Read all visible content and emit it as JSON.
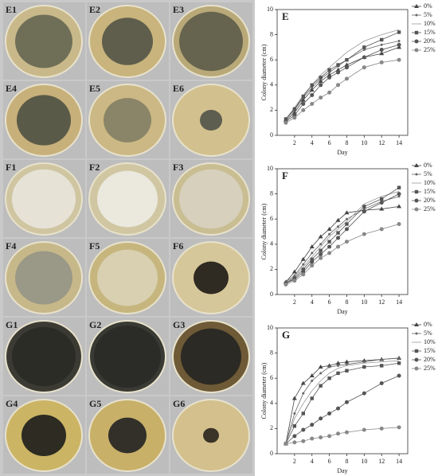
{
  "panels": {
    "labels": [
      "E1",
      "E2",
      "E3",
      "E4",
      "E5",
      "E6",
      "F1",
      "F2",
      "F3",
      "F4",
      "F5",
      "F6",
      "G1",
      "G2",
      "G3",
      "G4",
      "G5",
      "G6"
    ]
  },
  "chart_data": [
    {
      "type": "line",
      "title": "E",
      "x_label": "Day",
      "y_label": "Colony diameter (cm)",
      "x": [
        1,
        2,
        3,
        4,
        5,
        6,
        7,
        8,
        10,
        12,
        14
      ],
      "xlim": [
        0,
        15
      ],
      "ylim": [
        0,
        10
      ],
      "xticks": [
        2,
        4,
        6,
        8,
        10,
        12,
        14
      ],
      "yticks": [
        0,
        2,
        4,
        6,
        8,
        10
      ],
      "series": [
        {
          "name": "0%",
          "color": "#444444",
          "marker": "triangle",
          "values": [
            1.2,
            1.8,
            2.8,
            3.6,
            4.3,
            4.8,
            5.2,
            5.6,
            6.2,
            6.5,
            7.0
          ]
        },
        {
          "name": "5%",
          "color": "#666666",
          "marker": "dot",
          "values": [
            1.3,
            2.0,
            3.0,
            3.8,
            4.5,
            5.0,
            5.5,
            6.0,
            6.8,
            7.2,
            7.5
          ]
        },
        {
          "name": "10%",
          "color": "#999999",
          "marker": "none",
          "values": [
            1.3,
            2.2,
            3.2,
            4.0,
            4.8,
            5.4,
            6.0,
            6.6,
            7.5,
            8.0,
            8.4
          ]
        },
        {
          "name": "15%",
          "color": "#555555",
          "marker": "square",
          "values": [
            1.3,
            2.1,
            3.1,
            4.0,
            4.6,
            5.2,
            5.6,
            6.0,
            7.0,
            7.6,
            8.2
          ]
        },
        {
          "name": "20%",
          "color": "#555555",
          "marker": "circle",
          "values": [
            1.1,
            1.6,
            2.5,
            3.2,
            4.0,
            4.6,
            5.0,
            5.4,
            6.2,
            6.8,
            7.2
          ]
        },
        {
          "name": "25%",
          "color": "#888888",
          "marker": "circle",
          "values": [
            1.0,
            1.4,
            2.0,
            2.5,
            3.0,
            3.4,
            4.0,
            4.5,
            5.4,
            5.8,
            6.0
          ]
        }
      ]
    },
    {
      "type": "line",
      "title": "F",
      "x_label": "Day",
      "y_label": "Colony diameter (cm)",
      "x": [
        1,
        2,
        3,
        4,
        5,
        6,
        7,
        8,
        10,
        12,
        14
      ],
      "xlim": [
        0,
        15
      ],
      "ylim": [
        0,
        10
      ],
      "xticks": [
        2,
        4,
        6,
        8,
        10,
        12,
        14
      ],
      "yticks": [
        0,
        2,
        4,
        6,
        8,
        10
      ],
      "series": [
        {
          "name": "0%",
          "color": "#444444",
          "marker": "triangle",
          "values": [
            1.0,
            1.8,
            2.8,
            3.8,
            4.6,
            5.2,
            5.9,
            6.5,
            6.7,
            6.8,
            7.0
          ]
        },
        {
          "name": "5%",
          "color": "#666666",
          "marker": "dot",
          "values": [
            1.0,
            1.5,
            2.4,
            3.3,
            4.0,
            4.8,
            5.4,
            6.0,
            6.8,
            7.4,
            7.8
          ]
        },
        {
          "name": "10%",
          "color": "#999999",
          "marker": "none",
          "values": [
            0.9,
            1.4,
            2.2,
            3.0,
            3.8,
            4.6,
            5.2,
            5.8,
            7.2,
            7.8,
            8.2
          ]
        },
        {
          "name": "15%",
          "color": "#555555",
          "marker": "square",
          "values": [
            0.9,
            1.3,
            2.0,
            2.8,
            3.5,
            4.2,
            4.9,
            5.6,
            7.0,
            7.6,
            8.5
          ]
        },
        {
          "name": "20%",
          "color": "#555555",
          "marker": "circle",
          "values": [
            0.9,
            1.2,
            1.8,
            2.6,
            3.2,
            3.8,
            4.5,
            5.2,
            6.6,
            7.3,
            8.0
          ]
        },
        {
          "name": "25%",
          "color": "#888888",
          "marker": "circle",
          "values": [
            0.8,
            1.1,
            1.6,
            2.3,
            2.9,
            3.3,
            3.8,
            4.2,
            4.8,
            5.2,
            5.6
          ]
        }
      ]
    },
    {
      "type": "line",
      "title": "G",
      "x_label": "Day",
      "y_label": "Colony diameter (cm)",
      "x": [
        1,
        2,
        3,
        4,
        5,
        6,
        7,
        8,
        10,
        12,
        14
      ],
      "xlim": [
        0,
        15
      ],
      "ylim": [
        0,
        10
      ],
      "xticks": [
        2,
        4,
        6,
        8,
        10,
        12,
        14
      ],
      "yticks": [
        0,
        2,
        4,
        6,
        8,
        10
      ],
      "series": [
        {
          "name": "0%",
          "color": "#444444",
          "marker": "triangle",
          "values": [
            0.8,
            4.4,
            5.6,
            6.2,
            6.9,
            7.0,
            7.2,
            7.3,
            7.4,
            7.5,
            7.6
          ]
        },
        {
          "name": "5%",
          "color": "#666666",
          "marker": "dot",
          "values": [
            0.8,
            3.2,
            4.8,
            5.8,
            6.4,
            6.9,
            7.0,
            7.1,
            7.3,
            7.5,
            7.6
          ]
        },
        {
          "name": "10%",
          "color": "#999999",
          "marker": "none",
          "values": [
            0.8,
            2.8,
            4.0,
            5.0,
            5.8,
            6.4,
            6.8,
            7.0,
            7.2,
            7.3,
            7.4
          ]
        },
        {
          "name": "15%",
          "color": "#555555",
          "marker": "square",
          "values": [
            0.8,
            2.2,
            3.2,
            4.4,
            5.4,
            6.0,
            6.4,
            6.6,
            6.9,
            7.0,
            7.2
          ]
        },
        {
          "name": "20%",
          "color": "#555555",
          "marker": "circle",
          "values": [
            0.8,
            1.4,
            1.9,
            2.3,
            2.8,
            3.2,
            3.6,
            4.1,
            4.8,
            5.6,
            6.2
          ]
        },
        {
          "name": "25%",
          "color": "#888888",
          "marker": "circle",
          "values": [
            0.8,
            0.9,
            1.0,
            1.2,
            1.3,
            1.4,
            1.6,
            1.7,
            1.9,
            2.0,
            2.1
          ]
        }
      ]
    }
  ]
}
